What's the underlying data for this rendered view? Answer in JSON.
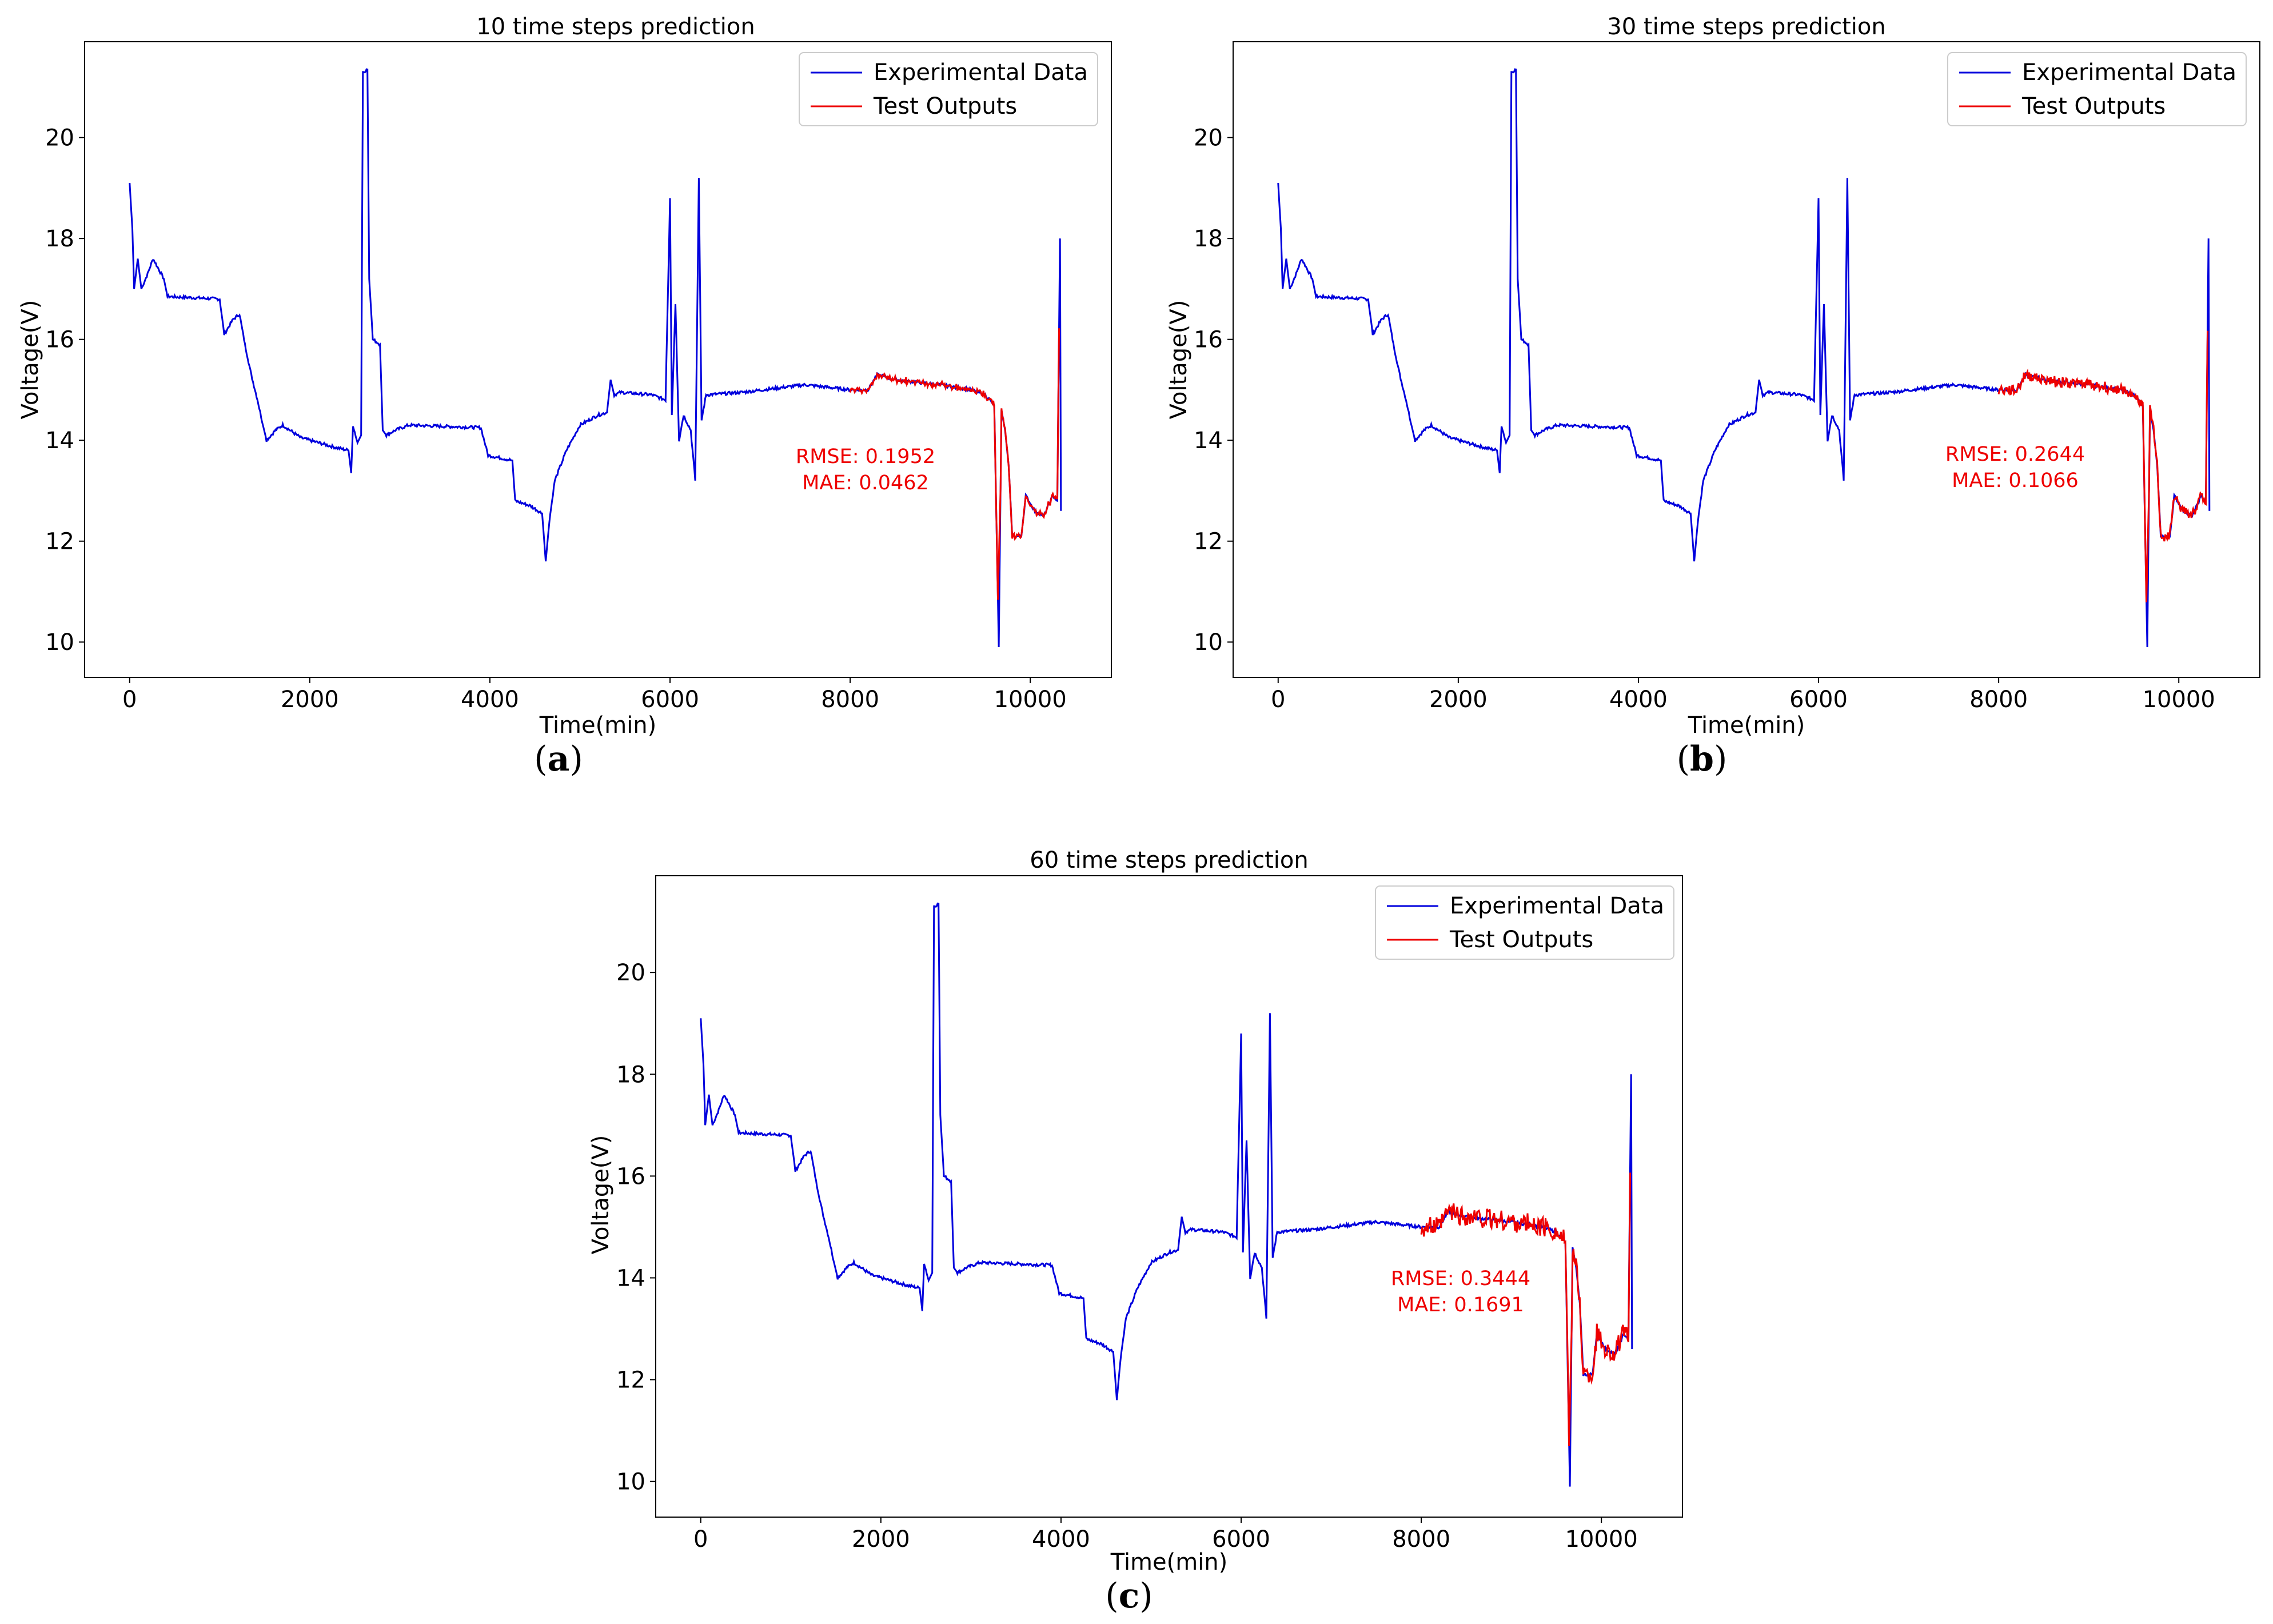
{
  "colors": {
    "experimental": "#0000dd",
    "test": "#ee0000",
    "metric": "#ee0000",
    "axis": "#000000",
    "legend_border": "#cccccc"
  },
  "chart_data": [
    {
      "type": "line",
      "id": "a",
      "title": "10 time steps prediction",
      "caption_letter": "a",
      "xlabel": "Time(min)",
      "ylabel": "Voltage(V)",
      "xlim": [
        -500,
        10900
      ],
      "ylim": [
        9.3,
        21.9
      ],
      "xticks": [
        0,
        2000,
        4000,
        6000,
        8000,
        10000
      ],
      "yticks": [
        10,
        12,
        14,
        16,
        18,
        20
      ],
      "legend": {
        "position": "top-right",
        "entries": [
          "Experimental Data",
          "Test Outputs"
        ]
      },
      "metrics": {
        "rmse": "RMSE:  0.1952",
        "mae": "MAE:  0.0462"
      },
      "test_noise": 0.05,
      "test_start": 8000
    },
    {
      "type": "line",
      "id": "b",
      "title": "30 time steps prediction",
      "caption_letter": "b",
      "xlabel": "Time(min)",
      "ylabel": "Voltage(V)",
      "xlim": [
        -500,
        10900
      ],
      "ylim": [
        9.3,
        21.9
      ],
      "xticks": [
        0,
        2000,
        4000,
        6000,
        8000,
        10000
      ],
      "yticks": [
        10,
        12,
        14,
        16,
        18,
        20
      ],
      "legend": {
        "position": "top-right",
        "entries": [
          "Experimental Data",
          "Test Outputs"
        ]
      },
      "metrics": {
        "rmse": "RMSE:  0.2644",
        "mae": "MAE:  0.1066"
      },
      "test_noise": 0.1,
      "test_start": 8000
    },
    {
      "type": "line",
      "id": "c",
      "title": "60 time steps prediction",
      "caption_letter": "c",
      "xlabel": "Time(min)",
      "ylabel": "Voltage(V)",
      "xlim": [
        -500,
        10900
      ],
      "ylim": [
        9.3,
        21.9
      ],
      "xticks": [
        0,
        2000,
        4000,
        6000,
        8000,
        10000
      ],
      "yticks": [
        10,
        12,
        14,
        16,
        18,
        20
      ],
      "legend": {
        "position": "top-right",
        "entries": [
          "Experimental Data",
          "Test Outputs"
        ]
      },
      "metrics": {
        "rmse": "RMSE:  0.3444",
        "mae": "MAE:  0.1691"
      },
      "test_noise": 0.2,
      "test_start": 8000
    }
  ],
  "series_shape": {
    "experimental": [
      [
        0,
        19.1
      ],
      [
        30,
        18.2
      ],
      [
        50,
        17.0
      ],
      [
        90,
        17.6
      ],
      [
        130,
        17.0
      ],
      [
        200,
        17.3
      ],
      [
        260,
        17.6
      ],
      [
        320,
        17.4
      ],
      [
        380,
        17.2
      ],
      [
        420,
        16.85
      ],
      [
        1000,
        16.8
      ],
      [
        1050,
        16.1
      ],
      [
        1150,
        16.4
      ],
      [
        1220,
        16.5
      ],
      [
        1280,
        15.9
      ],
      [
        1350,
        15.3
      ],
      [
        1420,
        14.8
      ],
      [
        1480,
        14.3
      ],
      [
        1520,
        14.0
      ],
      [
        1620,
        14.2
      ],
      [
        1700,
        14.3
      ],
      [
        1900,
        14.05
      ],
      [
        2300,
        13.85
      ],
      [
        2430,
        13.8
      ],
      [
        2460,
        13.35
      ],
      [
        2480,
        14.3
      ],
      [
        2530,
        13.95
      ],
      [
        2570,
        14.1
      ],
      [
        2590,
        21.3
      ],
      [
        2640,
        21.35
      ],
      [
        2660,
        17.2
      ],
      [
        2700,
        16.0
      ],
      [
        2780,
        15.9
      ],
      [
        2810,
        14.2
      ],
      [
        2850,
        14.1
      ],
      [
        2950,
        14.2
      ],
      [
        3100,
        14.3
      ],
      [
        3900,
        14.25
      ],
      [
        3980,
        13.7
      ],
      [
        4250,
        13.6
      ],
      [
        4280,
        12.8
      ],
      [
        4450,
        12.7
      ],
      [
        4580,
        12.55
      ],
      [
        4620,
        11.6
      ],
      [
        4660,
        12.4
      ],
      [
        4720,
        13.2
      ],
      [
        4850,
        13.8
      ],
      [
        5000,
        14.3
      ],
      [
        5200,
        14.5
      ],
      [
        5300,
        14.55
      ],
      [
        5340,
        15.2
      ],
      [
        5380,
        14.9
      ],
      [
        5450,
        14.95
      ],
      [
        5800,
        14.9
      ],
      [
        5950,
        14.8
      ],
      [
        6000,
        18.8
      ],
      [
        6020,
        14.5
      ],
      [
        6060,
        16.7
      ],
      [
        6100,
        14.0
      ],
      [
        6150,
        14.5
      ],
      [
        6230,
        14.2
      ],
      [
        6280,
        13.2
      ],
      [
        6320,
        19.2
      ],
      [
        6350,
        14.4
      ],
      [
        6400,
        14.9
      ],
      [
        6800,
        14.95
      ],
      [
        7500,
        15.1
      ],
      [
        8000,
        15.0
      ],
      [
        8200,
        15.0
      ],
      [
        8300,
        15.3
      ],
      [
        8500,
        15.2
      ],
      [
        9000,
        15.1
      ],
      [
        9350,
        15.0
      ],
      [
        9500,
        14.9
      ],
      [
        9600,
        14.7
      ],
      [
        9650,
        9.9
      ],
      [
        9680,
        14.6
      ],
      [
        9720,
        14.2
      ],
      [
        9760,
        13.5
      ],
      [
        9800,
        12.1
      ],
      [
        9900,
        12.1
      ],
      [
        9950,
        12.9
      ],
      [
        10050,
        12.6
      ],
      [
        10150,
        12.5
      ],
      [
        10250,
        12.9
      ],
      [
        10300,
        12.8
      ],
      [
        10330,
        18.0
      ],
      [
        10340,
        12.6
      ]
    ]
  }
}
